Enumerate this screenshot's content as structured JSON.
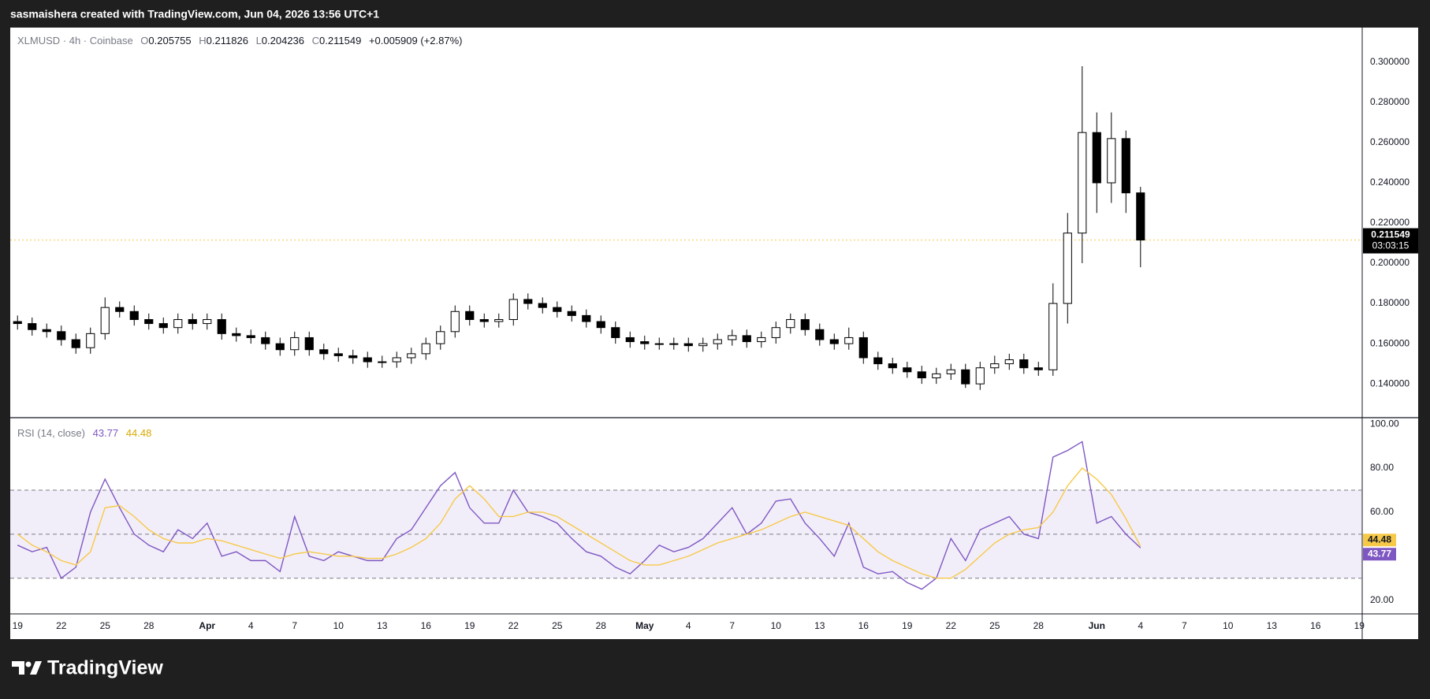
{
  "header": {
    "caption": "sasmaishera created with TradingView.com, Jun 04, 2026 13:56 UTC+1"
  },
  "footer": {
    "brand": "TradingView"
  },
  "legend": {
    "symbol": "XLMUSD · 4h · Coinbase",
    "o_key": "O",
    "open": 0.205755,
    "h_key": "H",
    "high": 0.211826,
    "l_key": "L",
    "low": 0.204236,
    "c_key": "C",
    "close": 0.211549,
    "change": "+0.005909 (+2.87%)"
  },
  "chart_data": [
    {
      "type": "candlestick",
      "x": [
        0,
        1,
        2,
        3,
        4,
        5,
        6,
        7,
        8,
        9,
        10,
        11,
        12,
        13,
        14,
        15,
        16,
        17,
        18,
        19,
        20,
        21,
        22,
        23,
        24,
        25,
        26,
        27,
        28,
        29,
        30,
        31,
        32,
        33,
        34,
        35,
        36,
        37,
        38,
        39,
        40,
        41,
        42,
        43,
        44,
        45,
        46,
        47,
        48,
        49,
        50,
        51,
        52,
        53,
        54,
        55,
        56,
        57,
        58,
        59,
        60,
        61,
        62,
        63,
        64,
        65,
        66,
        67,
        68,
        69,
        70,
        71,
        72,
        73,
        74,
        75,
        76,
        77
      ],
      "open": [
        0.171,
        0.17,
        0.167,
        0.166,
        0.162,
        0.158,
        0.165,
        0.178,
        0.176,
        0.172,
        0.17,
        0.168,
        0.172,
        0.17,
        0.172,
        0.165,
        0.164,
        0.163,
        0.16,
        0.157,
        0.163,
        0.157,
        0.155,
        0.154,
        0.153,
        0.151,
        0.151,
        0.153,
        0.155,
        0.16,
        0.166,
        0.176,
        0.172,
        0.171,
        0.172,
        0.182,
        0.18,
        0.178,
        0.176,
        0.174,
        0.171,
        0.168,
        0.163,
        0.161,
        0.16,
        0.16,
        0.16,
        0.159,
        0.16,
        0.162,
        0.164,
        0.161,
        0.163,
        0.168,
        0.172,
        0.167,
        0.162,
        0.16,
        0.163,
        0.153,
        0.15,
        0.148,
        0.146,
        0.143,
        0.145,
        0.147,
        0.14,
        0.148,
        0.15,
        0.152,
        0.148,
        0.147,
        0.18,
        0.215,
        0.265,
        0.24,
        0.262,
        0.235
      ],
      "high": [
        0.174,
        0.173,
        0.17,
        0.169,
        0.165,
        0.168,
        0.183,
        0.181,
        0.179,
        0.175,
        0.173,
        0.175,
        0.175,
        0.175,
        0.175,
        0.168,
        0.167,
        0.166,
        0.163,
        0.166,
        0.166,
        0.16,
        0.158,
        0.157,
        0.156,
        0.154,
        0.156,
        0.158,
        0.163,
        0.169,
        0.179,
        0.179,
        0.175,
        0.175,
        0.185,
        0.185,
        0.183,
        0.181,
        0.179,
        0.177,
        0.174,
        0.171,
        0.166,
        0.164,
        0.163,
        0.163,
        0.163,
        0.163,
        0.165,
        0.167,
        0.167,
        0.166,
        0.171,
        0.175,
        0.175,
        0.17,
        0.165,
        0.168,
        0.166,
        0.156,
        0.153,
        0.151,
        0.149,
        0.148,
        0.15,
        0.15,
        0.151,
        0.154,
        0.155,
        0.155,
        0.151,
        0.19,
        0.225,
        0.298,
        0.275,
        0.275,
        0.266,
        0.238
      ],
      "low": [
        0.167,
        0.164,
        0.163,
        0.159,
        0.155,
        0.155,
        0.162,
        0.173,
        0.169,
        0.167,
        0.165,
        0.165,
        0.167,
        0.167,
        0.162,
        0.161,
        0.16,
        0.157,
        0.154,
        0.154,
        0.154,
        0.152,
        0.151,
        0.15,
        0.148,
        0.148,
        0.148,
        0.15,
        0.152,
        0.157,
        0.163,
        0.169,
        0.168,
        0.168,
        0.169,
        0.177,
        0.175,
        0.173,
        0.171,
        0.168,
        0.165,
        0.16,
        0.158,
        0.157,
        0.157,
        0.157,
        0.156,
        0.156,
        0.157,
        0.159,
        0.158,
        0.158,
        0.16,
        0.165,
        0.164,
        0.159,
        0.157,
        0.157,
        0.15,
        0.147,
        0.145,
        0.143,
        0.14,
        0.14,
        0.142,
        0.138,
        0.137,
        0.145,
        0.147,
        0.145,
        0.144,
        0.144,
        0.17,
        0.2,
        0.225,
        0.23,
        0.225,
        0.198
      ],
      "close": [
        0.17,
        0.167,
        0.166,
        0.162,
        0.158,
        0.165,
        0.178,
        0.176,
        0.172,
        0.17,
        0.168,
        0.172,
        0.17,
        0.172,
        0.165,
        0.164,
        0.163,
        0.16,
        0.157,
        0.163,
        0.157,
        0.155,
        0.154,
        0.153,
        0.151,
        0.151,
        0.153,
        0.155,
        0.16,
        0.166,
        0.176,
        0.172,
        0.171,
        0.172,
        0.182,
        0.18,
        0.178,
        0.176,
        0.174,
        0.171,
        0.168,
        0.163,
        0.161,
        0.16,
        0.16,
        0.16,
        0.159,
        0.16,
        0.162,
        0.164,
        0.161,
        0.163,
        0.168,
        0.172,
        0.167,
        0.162,
        0.16,
        0.163,
        0.153,
        0.15,
        0.148,
        0.146,
        0.143,
        0.145,
        0.147,
        0.14,
        0.148,
        0.15,
        0.152,
        0.148,
        0.147,
        0.18,
        0.215,
        0.265,
        0.24,
        0.262,
        0.235,
        0.211549
      ],
      "up_color": "#ffffff",
      "down_color": "#000000",
      "wick_color": "#000000",
      "countdown": "03:03:15",
      "xlim": [
        -0.5,
        92.2
      ],
      "ylim": [
        0.1232,
        0.3172
      ],
      "yticks": [
        {
          "value": 0.14,
          "label": "0.140000"
        },
        {
          "value": 0.16,
          "label": "0.160000"
        },
        {
          "value": 0.18,
          "label": "0.180000"
        },
        {
          "value": 0.2,
          "label": "0.200000"
        },
        {
          "value": 0.22,
          "label": "0.220000"
        },
        {
          "value": 0.24,
          "label": "0.240000"
        },
        {
          "value": 0.26,
          "label": "0.260000"
        },
        {
          "value": 0.28,
          "label": "0.280000"
        },
        {
          "value": 0.3,
          "label": "0.300000"
        }
      ],
      "xticks": [
        {
          "value": 0,
          "label": "19"
        },
        {
          "value": 3,
          "label": "22"
        },
        {
          "value": 6,
          "label": "25"
        },
        {
          "value": 9,
          "label": "28"
        },
        {
          "value": 13,
          "label": "Apr"
        },
        {
          "value": 16,
          "label": "4"
        },
        {
          "value": 19,
          "label": "7"
        },
        {
          "value": 22,
          "label": "10"
        },
        {
          "value": 25,
          "label": "13"
        },
        {
          "value": 28,
          "label": "16"
        },
        {
          "value": 31,
          "label": "19"
        },
        {
          "value": 34,
          "label": "22"
        },
        {
          "value": 37,
          "label": "25"
        },
        {
          "value": 40,
          "label": "28"
        },
        {
          "value": 43,
          "label": "May"
        },
        {
          "value": 46,
          "label": "4"
        },
        {
          "value": 49,
          "label": "7"
        },
        {
          "value": 52,
          "label": "10"
        },
        {
          "value": 55,
          "label": "13"
        },
        {
          "value": 58,
          "label": "16"
        },
        {
          "value": 61,
          "label": "19"
        },
        {
          "value": 64,
          "label": "22"
        },
        {
          "value": 67,
          "label": "25"
        },
        {
          "value": 70,
          "label": "28"
        },
        {
          "value": 74,
          "label": "Jun"
        },
        {
          "value": 77,
          "label": "4"
        },
        {
          "value": 80,
          "label": "7"
        },
        {
          "value": 83,
          "label": "10"
        },
        {
          "value": 86,
          "label": "13"
        },
        {
          "value": 89,
          "label": "16"
        },
        {
          "value": 92,
          "label": "19"
        }
      ]
    },
    {
      "type": "line",
      "title": "RSI (14, close)",
      "x": [
        0,
        1,
        2,
        3,
        4,
        5,
        6,
        7,
        8,
        9,
        10,
        11,
        12,
        13,
        14,
        15,
        16,
        17,
        18,
        19,
        20,
        21,
        22,
        23,
        24,
        25,
        26,
        27,
        28,
        29,
        30,
        31,
        32,
        33,
        34,
        35,
        36,
        37,
        38,
        39,
        40,
        41,
        42,
        43,
        44,
        45,
        46,
        47,
        48,
        49,
        50,
        51,
        52,
        53,
        54,
        55,
        56,
        57,
        58,
        59,
        60,
        61,
        62,
        63,
        64,
        65,
        66,
        67,
        68,
        69,
        70,
        71,
        72,
        73,
        74,
        75,
        76,
        77
      ],
      "series": [
        {
          "color": "#7e57c2",
          "values": [
            45,
            42,
            44,
            30,
            35,
            60,
            75,
            62,
            50,
            45,
            42,
            52,
            48,
            55,
            40,
            42,
            38,
            38,
            33,
            58,
            40,
            38,
            42,
            40,
            38,
            38,
            48,
            52,
            62,
            72,
            78,
            62,
            55,
            55,
            70,
            60,
            58,
            55,
            48,
            42,
            40,
            35,
            32,
            38,
            45,
            42,
            44,
            48,
            55,
            62,
            50,
            55,
            65,
            66,
            55,
            48,
            40,
            55,
            35,
            32,
            33,
            28,
            25,
            30,
            48,
            38,
            52,
            55,
            58,
            50,
            48,
            85,
            88,
            92,
            55,
            58,
            50,
            43.77
          ]
        },
        {
          "color": "#f7c948",
          "values": [
            50,
            45,
            42,
            38,
            36,
            42,
            62,
            63,
            58,
            52,
            48,
            46,
            46,
            48,
            47,
            45,
            43,
            41,
            39,
            41,
            42,
            41,
            40,
            40,
            39,
            39,
            41,
            44,
            48,
            55,
            66,
            72,
            66,
            58,
            58,
            60,
            60,
            58,
            54,
            50,
            46,
            42,
            38,
            36,
            36,
            38,
            40,
            43,
            46,
            48,
            50,
            52,
            55,
            58,
            60,
            58,
            56,
            54,
            48,
            42,
            38,
            35,
            32,
            30,
            30,
            34,
            40,
            46,
            50,
            52,
            53,
            60,
            72,
            80,
            75,
            68,
            57,
            44.48
          ]
        }
      ],
      "levels": [
        30,
        50,
        70
      ],
      "band_color": "#7e57c2",
      "xlim": [
        -0.5,
        92.2
      ],
      "ylim": [
        13.8,
        102.9
      ],
      "yticks": [
        {
          "value": 20,
          "label": "20.00"
        },
        {
          "value": 40,
          "label": "40.00"
        },
        {
          "value": 60,
          "label": "60.00"
        },
        {
          "value": 80,
          "label": "80.00"
        },
        {
          "value": 100,
          "label": "100.00"
        }
      ]
    }
  ]
}
